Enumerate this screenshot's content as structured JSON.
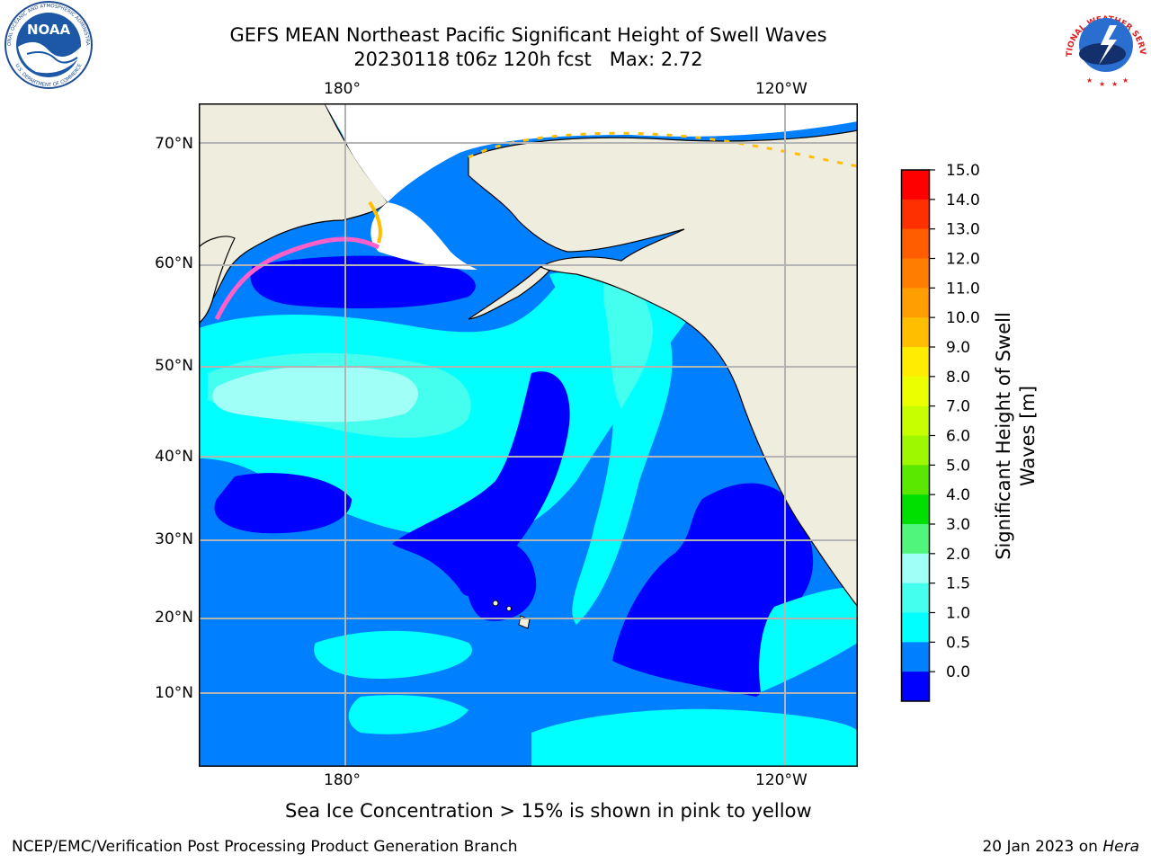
{
  "title": {
    "line1": "GEFS MEAN Northeast Pacific Significant Height of Swell Waves",
    "line2": "20230118 t06z 120h fcst   Max: 2.72"
  },
  "logos": {
    "left": "NOAA",
    "left_ring_top": "NATIONAL OCEANIC AND ATMOSPHERIC ADMINISTRATION",
    "left_ring_bottom": "U.S. DEPARTMENT OF COMMERCE",
    "right_ring": "NATIONAL WEATHER SERVICE"
  },
  "map": {
    "top_lon_labels": [
      "180°",
      "120°W"
    ],
    "bottom_lon_labels": [
      "180°",
      "120°W"
    ],
    "lat_labels": [
      "70°N",
      "60°N",
      "50°N",
      "40°N",
      "30°N",
      "20°N",
      "10°N"
    ],
    "land_color": "#efedde",
    "coast_color": "#000000",
    "grid_color": "#b4b4b4"
  },
  "colorbar": {
    "label_line1": "Significant Height of Swell",
    "label_line2": "Waves [m]",
    "ticks": [
      "15.0",
      "14.0",
      "13.0",
      "12.0",
      "11.0",
      "10.0",
      "9.0",
      "8.0",
      "7.0",
      "6.0",
      "5.0",
      "4.0",
      "3.0",
      "2.0",
      "1.5",
      "1.0",
      "0.5",
      "0.0"
    ],
    "colors": [
      "#ff0000",
      "#ff3000",
      "#ff5d00",
      "#ff7e00",
      "#ff9e00",
      "#ffbe00",
      "#ffec00",
      "#ecff00",
      "#c8ff00",
      "#9df800",
      "#5ae800",
      "#00e000",
      "#50f67c",
      "#a0fff6",
      "#45ffee",
      "#00ffff",
      "#0080ff",
      "#0000ff"
    ]
  },
  "notes": {
    "sea_ice": "Sea Ice Concentration > 15% is shown in pink to yellow",
    "producer": "NCEP/EMC/Verification Post Processing Product Generation Branch",
    "date": "20 Jan 2023 on ",
    "machine": "Hera"
  }
}
